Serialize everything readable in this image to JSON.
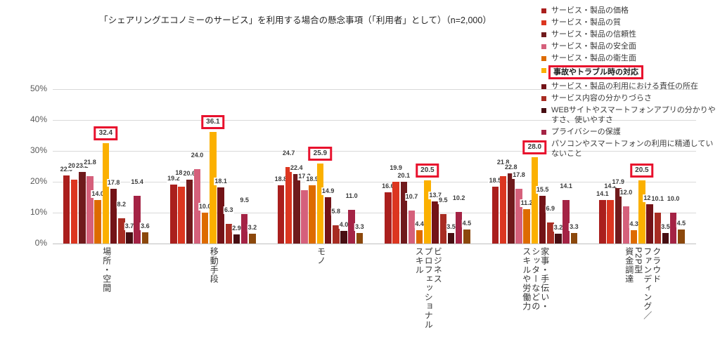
{
  "title": "「シェアリングエコノミーのサービス」を利用する場合の懸念事項（「利用者」として）（n=2,000）",
  "chart_data": {
    "type": "bar",
    "title": "「シェアリングエコノミーのサービス」を利用する場合の懸念事項（「利用者」として）（n=2,000）",
    "sample_note": "n=2,000",
    "xlabel": "",
    "ylabel": "",
    "ylim": [
      0,
      50
    ],
    "yticks": [
      "0%",
      "10%",
      "20%",
      "30%",
      "40%",
      "50%"
    ],
    "grid": true,
    "legend_position": "top-right",
    "highlight": {
      "series": "事故やトラブル時の対応",
      "box_color": "#e8112d"
    },
    "categories": [
      "場所・空間",
      "移動手段",
      "モノ",
      "ビジネス・プロフェッショナル・スキル",
      "家事・手伝い・シッターなどのスキルや労働力",
      "クラウドファンディング／P2P型資金調達"
    ],
    "category_label_lines": [
      [
        "場所・空間"
      ],
      [
        "移動手段"
      ],
      [
        "モノ"
      ],
      [
        "ビジネス",
        "プロフェッショナル",
        "スキル"
      ],
      [
        "家事・手伝い・",
        "シッターなどの",
        "スキルや労働力"
      ],
      [
        "クラウド",
        "ファンディング／",
        "P2P型",
        "資金調達"
      ]
    ],
    "series": [
      {
        "name": "サービス・製品の価格",
        "color": "#aa1f1d",
        "values": [
          22.0,
          19.2,
          18.8,
          16.6,
          18.5,
          14.1
        ]
      },
      {
        "name": "サービス・製品の質",
        "color": "#dc3620",
        "values": [
          20.6,
          18.5,
          24.7,
          19.9,
          21.8,
          14.2
        ]
      },
      {
        "name": "サービス・製品の信頼性",
        "color": "#701a1c",
        "values": [
          23.2,
          20.6,
          22.4,
          20.1,
          22.8,
          17.9
        ]
      },
      {
        "name": "サービス・製品の安全面",
        "color": "#d5607b",
        "values": [
          21.8,
          24.0,
          17.3,
          10.7,
          17.8,
          12.0
        ]
      },
      {
        "name": "サービス・製品の衛生面",
        "color": "#dd6b00",
        "values": [
          14.0,
          10.0,
          18.9,
          4.4,
          11.2,
          4.3
        ]
      },
      {
        "name": "事故やトラブル時の対応",
        "color": "#fbb000",
        "values": [
          32.4,
          36.1,
          25.9,
          20.5,
          28.0,
          20.5
        ]
      },
      {
        "name": "サービス・製品の利用における責任の所在",
        "color": "#731317",
        "values": [
          17.8,
          18.1,
          14.9,
          13.7,
          15.5,
          12.7
        ]
      },
      {
        "name": "サービス内容の分かりづらさ",
        "color": "#a82c22",
        "values": [
          8.2,
          6.3,
          5.8,
          9.5,
          6.9,
          10.1
        ]
      },
      {
        "name": "WEBサイトやスマートフォンアプリの分かりやすさ、使いやすさ",
        "color": "#470e12",
        "values": [
          3.7,
          2.9,
          4.0,
          3.5,
          3.2,
          3.5
        ]
      },
      {
        "name": "プライバシーの保護",
        "color": "#a42345",
        "values": [
          15.4,
          9.5,
          11.0,
          10.2,
          14.1,
          10.0
        ]
      },
      {
        "name": "パソコンやスマートフォンの利用に精通していないこと",
        "color": "#8c480c",
        "values": [
          3.6,
          3.2,
          3.3,
          4.5,
          3.3,
          4.5
        ]
      }
    ]
  }
}
